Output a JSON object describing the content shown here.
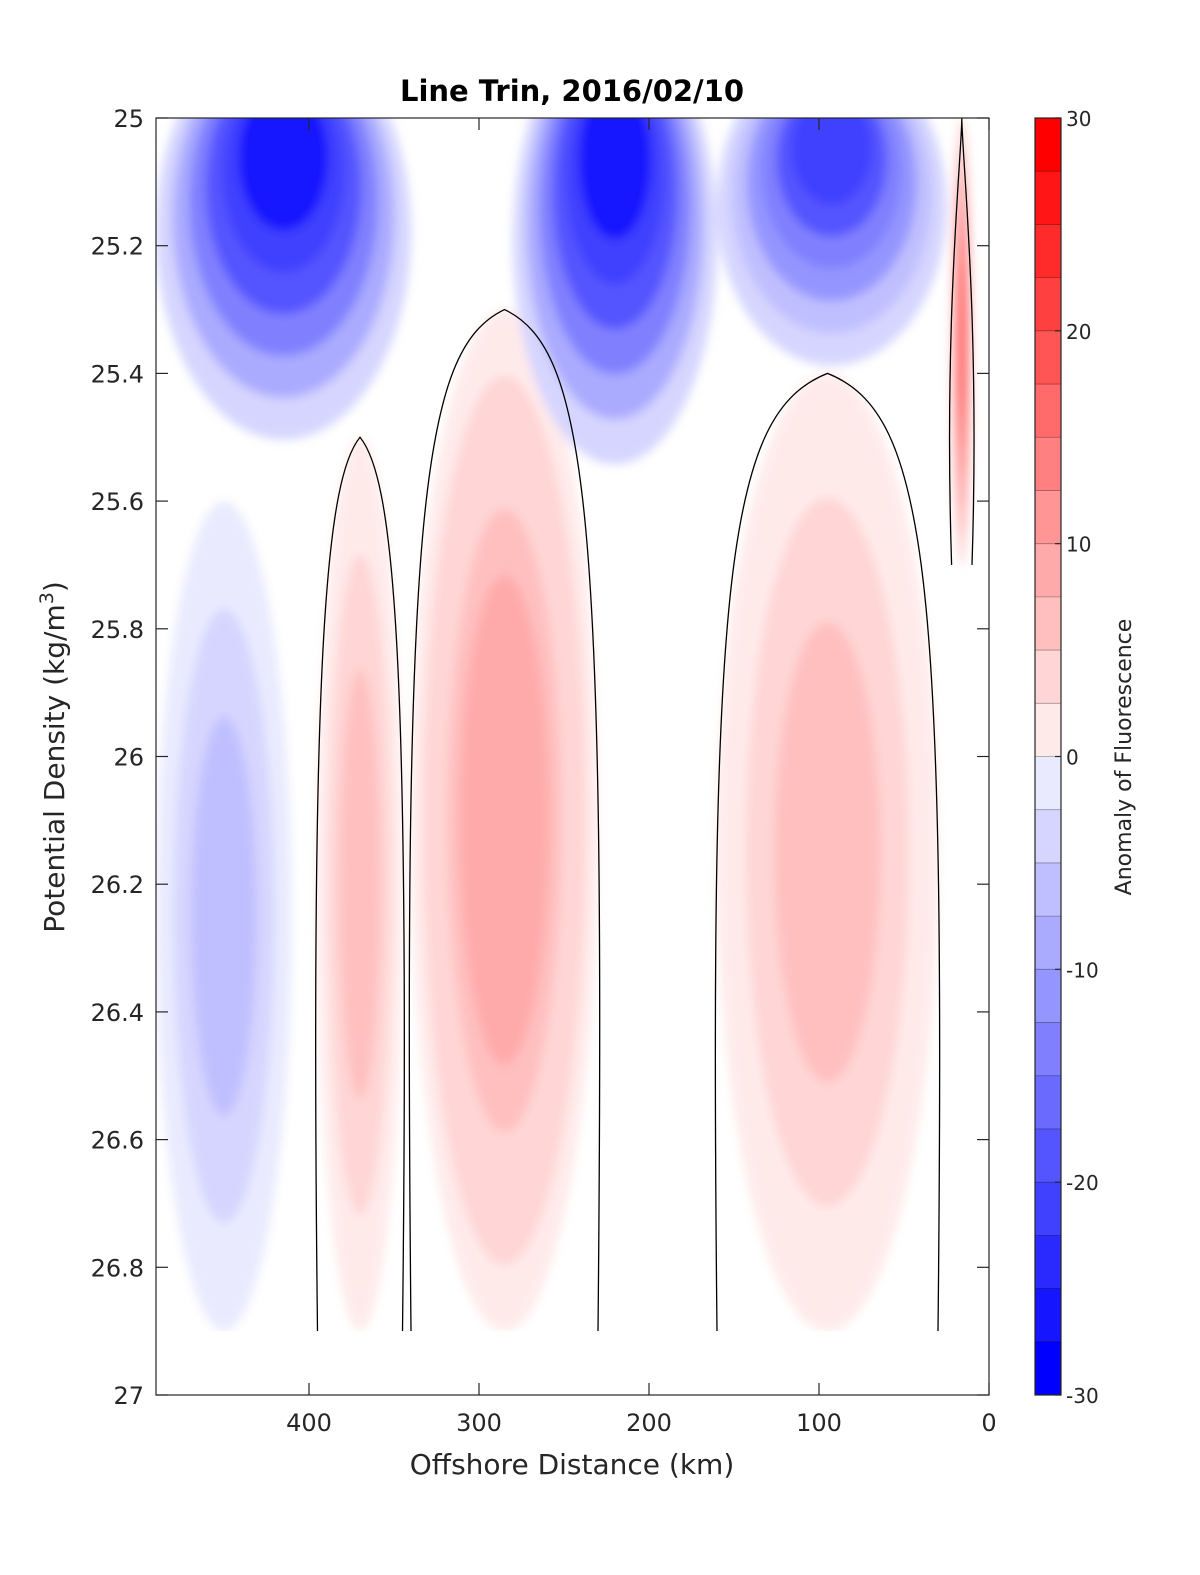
{
  "chart_data": {
    "type": "filled-contour",
    "title": "Line Trin, 2016/02/10",
    "xlabel": "Offshore Distance (km)",
    "ylabel_main": "Potential Density (kg/m",
    "ylabel_sup": "3",
    "ylabel_close": ")",
    "colorbar_label": "Anomaly of Fluorescence",
    "xlim": [
      490,
      0
    ],
    "ylim": [
      25,
      27
    ],
    "y_reversed": true,
    "x_reversed": true,
    "xticks": [
      400,
      300,
      200,
      100,
      0
    ],
    "yticks": [
      25,
      25.2,
      25.4,
      25.6,
      25.8,
      26,
      26.2,
      26.4,
      26.6,
      26.8,
      27
    ],
    "colorbar": {
      "clim": [
        -30,
        30
      ],
      "levels_step": 2.5,
      "ticks": [
        30,
        20,
        10,
        0,
        -10,
        -20,
        -30
      ],
      "colormap": "blue-white-red",
      "low_color": "#0000ff",
      "mid_color": "#ffffff",
      "high_color": "#ff0000"
    },
    "data_coverage_max_density": 26.9,
    "zero_contour_color": "#000000",
    "regions": [
      {
        "name": "offshore-negative",
        "x": [
          490,
          340
        ],
        "density": [
          25,
          25.65
        ],
        "anomaly_min": -27
      },
      {
        "name": "positive-core-390-350",
        "x": [
          395,
          345
        ],
        "density": [
          25.5,
          26.9
        ],
        "anomaly_max": 7
      },
      {
        "name": "positive-core-300",
        "x": [
          340,
          230
        ],
        "density": [
          25.3,
          26.9
        ],
        "anomaly_max": 10
      },
      {
        "name": "negative-core-220",
        "x": [
          280,
          160
        ],
        "density": [
          25,
          25.7
        ],
        "anomaly_min": -27
      },
      {
        "name": "positive-core-100",
        "x": [
          160,
          30
        ],
        "density": [
          25.4,
          26.9
        ],
        "anomaly_max": 7
      },
      {
        "name": "negative-core-80",
        "x": [
          160,
          25
        ],
        "density": [
          25,
          25.5
        ],
        "anomaly_min": -22
      },
      {
        "name": "nearshore-positive",
        "x": [
          22,
          10
        ],
        "density": [
          25,
          25.7
        ],
        "anomaly_max": 17
      },
      {
        "name": "offshore-weak-negative",
        "x": [
          490,
          410
        ],
        "density": [
          25.6,
          26.9
        ],
        "anomaly_min": -7
      }
    ]
  }
}
